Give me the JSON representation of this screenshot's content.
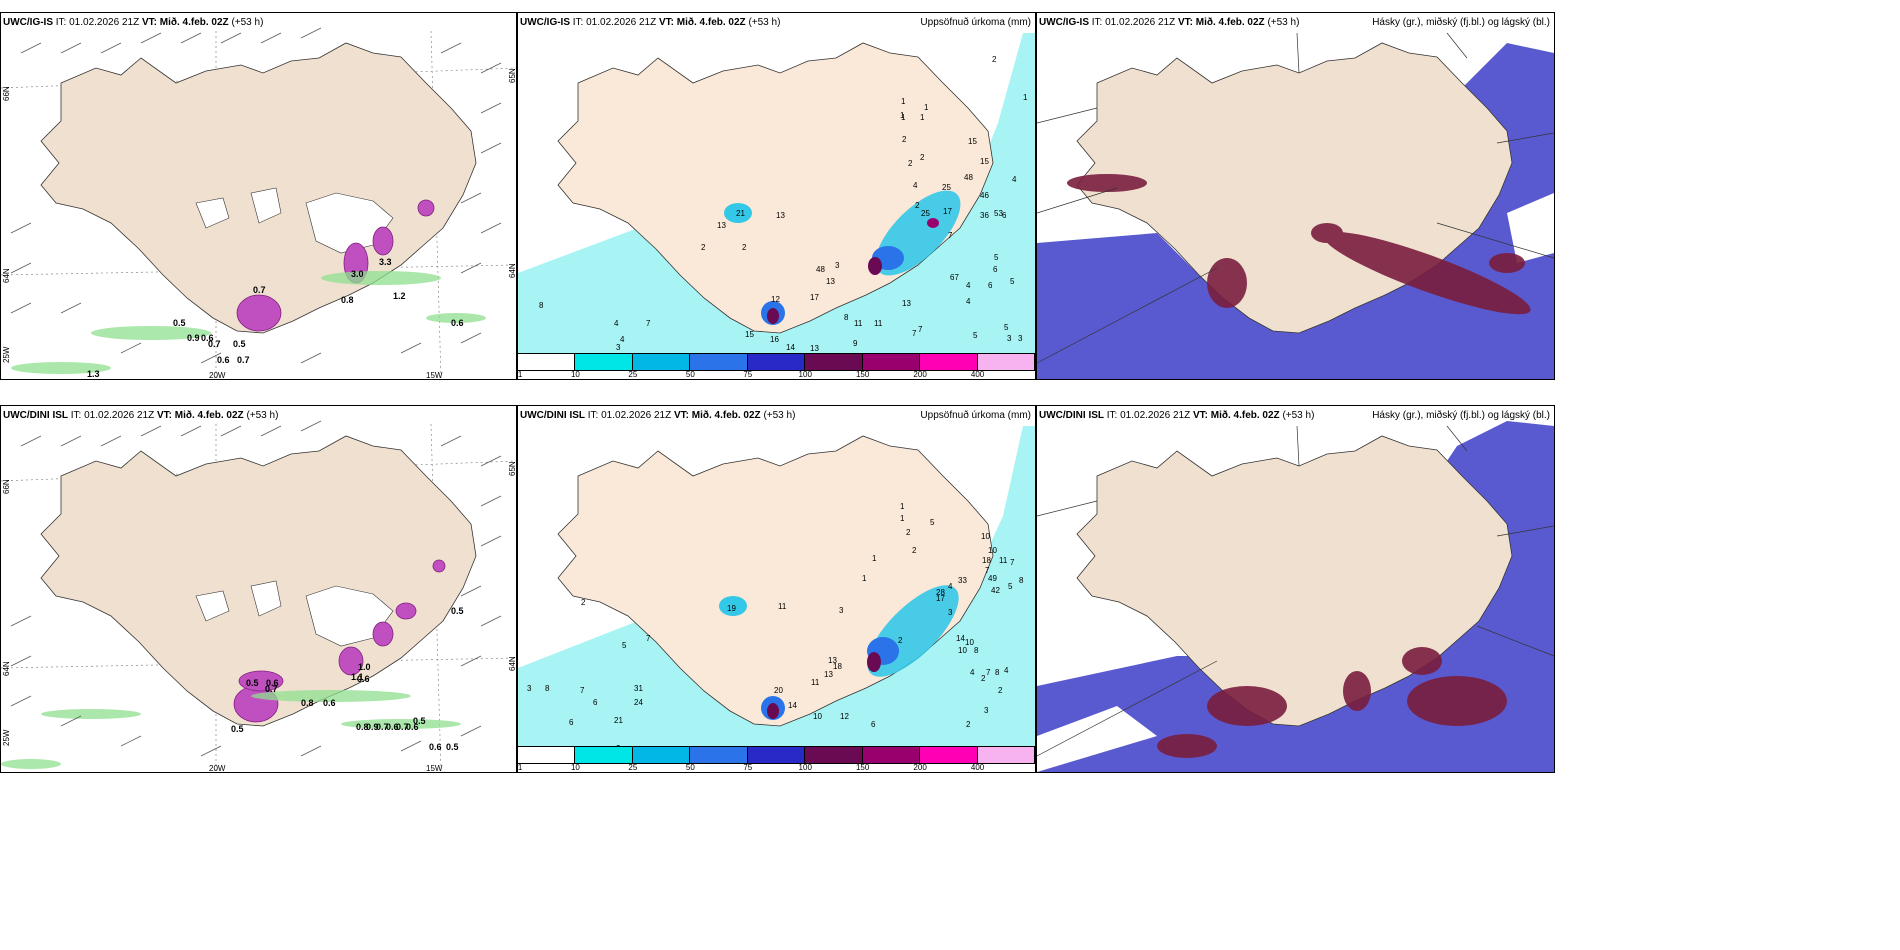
{
  "panels": [
    {
      "model_label": "UWC/IG-IS",
      "it_label": "IT:",
      "init_time": "01.02.2026 21Z",
      "vt_label": "VT:",
      "valid_time": "Mið. 4.feb. 02Z",
      "lead": "(+53 h)",
      "right_title": "",
      "type": "wind",
      "axis_labels": {
        "lon1": "20W",
        "lon2": "15W",
        "lat_left_top": "66N",
        "lat_left_mid": "64N",
        "lat_left_bot": "25W",
        "lat_right_top": "65N",
        "lat_right_mid": "64N"
      },
      "values": [
        "0.5",
        "0.9",
        "0.6",
        "0.7",
        "0.5",
        "0.6",
        "0.7",
        "1.2",
        "0.8",
        "0.6",
        "1.3",
        "0.7",
        "3.0",
        "3.3"
      ]
    },
    {
      "model_label": "UWC/IG-IS",
      "it_label": "IT:",
      "init_time": "01.02.2026 21Z",
      "vt_label": "VT:",
      "valid_time": "Mið. 4.feb. 02Z",
      "lead": "(+53 h)",
      "right_title": "Uppsöfnuð úrkoma (mm)",
      "type": "precip",
      "values": [
        "2",
        "1",
        "1",
        "1",
        "2",
        "2",
        "2",
        "1",
        "8",
        "15",
        "15",
        "4",
        "25",
        "48",
        "46",
        "4",
        "13",
        "21",
        "13",
        "2",
        "2",
        "1",
        "2",
        "17",
        "36",
        "53",
        "5",
        "7",
        "3",
        "48",
        "13",
        "17",
        "12",
        "25",
        "67",
        "4",
        "6",
        "6",
        "5",
        "4",
        "7",
        "5",
        "11",
        "11",
        "13",
        "8",
        "1",
        "4",
        "7",
        "9",
        "7",
        "5",
        "3",
        "3",
        "4",
        "3",
        "15",
        "16",
        "14",
        "13",
        "12",
        "6"
      ]
    },
    {
      "model_label": "UWC/IG-IS",
      "it_label": "IT:",
      "init_time": "01.02.2026 21Z",
      "vt_label": "VT:",
      "valid_time": "Mið. 4.feb. 02Z",
      "lead": "(+53 h)",
      "right_title": "Hásky (gr.), miðský (fj.bl.) og lágský (bl.)",
      "type": "cloud",
      "values": []
    },
    {
      "model_label": "UWC/DINI ISL",
      "it_label": "IT:",
      "init_time": "01.02.2026 21Z",
      "vt_label": "VT:",
      "valid_time": "Mið. 4.feb. 02Z",
      "lead": "(+53 h)",
      "right_title": "",
      "type": "wind",
      "axis_labels": {
        "lon1": "20W",
        "lon2": "15W",
        "lat_left_top": "66N",
        "lat_left_mid": "64N",
        "lat_left_bot": "25W",
        "lat_right_top": "65N",
        "lat_right_mid": "64N"
      },
      "values": [
        "0.5",
        "0.6",
        "1.0",
        "0.6",
        "0.8",
        "0.6",
        "0.7",
        "0.5",
        "0.8",
        "0.9",
        "0.7",
        "0.6",
        "0.7",
        "0.6",
        "0.5",
        "0.6",
        "0.5",
        "1.1",
        "0.5"
      ]
    },
    {
      "model_label": "UWC/DINI ISL",
      "it_label": "IT:",
      "init_time": "01.02.2026 21Z",
      "vt_label": "VT:",
      "valid_time": "Mið. 4.feb. 02Z",
      "lead": "(+53 h)",
      "right_title": "Uppsöfnuð úrkoma (mm)",
      "type": "precip",
      "values": [
        "1",
        "1",
        "2",
        "2",
        "1",
        "5",
        "10",
        "10",
        "18",
        "11",
        "7",
        "7",
        "33",
        "49",
        "4",
        "42",
        "28",
        "5",
        "8",
        "2",
        "19",
        "11",
        "3",
        "17",
        "3",
        "14",
        "10",
        "10",
        "8",
        "7",
        "8",
        "4",
        "2",
        "1",
        "2",
        "5",
        "7",
        "31",
        "24",
        "21",
        "13",
        "18",
        "13",
        "11",
        "20",
        "14",
        "10",
        "12",
        "6",
        "5",
        "3",
        "2",
        "4",
        "2",
        "2",
        "3",
        "8",
        "7",
        "6",
        "6"
      ]
    },
    {
      "model_label": "UWC/DINI ISL",
      "it_label": "IT:",
      "init_time": "01.02.2026 21Z",
      "vt_label": "VT:",
      "valid_time": "Mið. 4.feb. 02Z",
      "lead": "(+53 h)",
      "right_title": "Hásky (gr.), miðský (fj.bl.) og lágský (bl.)",
      "type": "cloud",
      "values": []
    }
  ],
  "colorbar": {
    "ticks": [
      "1",
      "10",
      "25",
      "50",
      "75",
      "100",
      "150",
      "200",
      "400"
    ],
    "colors": [
      "#ffffff",
      "#00e5e5",
      "#00b7e6",
      "#2a73e8",
      "#2929c8",
      "#6a0a52",
      "#99006e",
      "#ff00b4",
      "#f6b3ef"
    ]
  }
}
